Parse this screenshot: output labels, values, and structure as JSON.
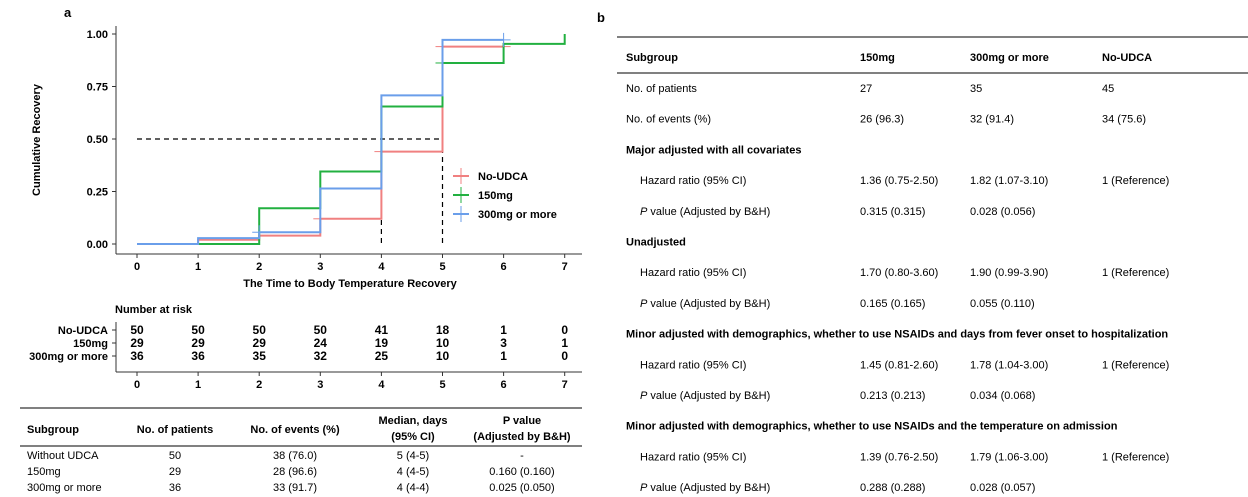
{
  "panel_a": {
    "label": "a",
    "legend": [
      {
        "name": "No-UDCA",
        "color": "#f08080"
      },
      {
        "name": "150mg",
        "color": "#22b040"
      },
      {
        "name": "300mg or more",
        "color": "#6a9eea"
      }
    ],
    "risk_table": {
      "title": "Number at risk",
      "rows": [
        {
          "label": "No-UDCA",
          "values": [
            "50",
            "50",
            "50",
            "50",
            "41",
            "18",
            "1",
            "0"
          ]
        },
        {
          "label": "150mg",
          "values": [
            "29",
            "29",
            "29",
            "24",
            "19",
            "10",
            "3",
            "1"
          ]
        },
        {
          "label": "300mg or more",
          "values": [
            "36",
            "36",
            "35",
            "32",
            "25",
            "10",
            "1",
            "0"
          ]
        }
      ],
      "x_ticks": [
        "0",
        "1",
        "2",
        "3",
        "4",
        "5",
        "6",
        "7"
      ]
    },
    "summary_table": {
      "headers": [
        "Subgroup",
        "No. of patients",
        "No. of events (%)",
        "Median, days",
        "(95% CI)",
        "P value",
        "(Adjusted by B&H)"
      ],
      "rows": [
        [
          "Without UDCA",
          "50",
          "38 (76.0)",
          "5 (4-5)",
          "-"
        ],
        [
          "150mg",
          "29",
          "28 (96.6)",
          "4 (4-5)",
          "0.160 (0.160)"
        ],
        [
          "300mg or more",
          "36",
          "33 (91.7)",
          "4 (4-4)",
          "0.025 (0.050)"
        ]
      ]
    }
  },
  "chart_data": {
    "type": "line",
    "step": true,
    "xlabel": "The Time to Body Temperature Recovery",
    "ylabel": "Cumulative Recovery",
    "xlim": [
      0,
      7
    ],
    "ylim": [
      0,
      1
    ],
    "x_ticks": [
      "0",
      "1",
      "2",
      "3",
      "4",
      "5",
      "6",
      "7"
    ],
    "y_ticks": [
      "0.00",
      "0.25",
      "0.50",
      "0.75",
      "1.00"
    ],
    "median_line": {
      "y": 0.5,
      "x_values": [
        4,
        5
      ]
    },
    "series": [
      {
        "name": "No-UDCA",
        "color": "#f08080",
        "x": [
          0,
          1,
          2,
          3,
          4,
          5,
          6
        ],
        "y": [
          0,
          0.02,
          0.04,
          0.12,
          0.44,
          0.94,
          0.94
        ],
        "censor": [
          [
            3,
            0.12
          ],
          [
            4,
            0.44
          ],
          [
            5,
            0.94
          ],
          [
            6,
            0.94
          ]
        ]
      },
      {
        "name": "150mg",
        "color": "#22b040",
        "x": [
          0,
          2,
          3,
          4,
          5,
          6,
          7
        ],
        "y": [
          0,
          0.17,
          0.345,
          0.655,
          0.862,
          0.953,
          1.0
        ],
        "censor": [
          [
            5,
            0.862
          ]
        ]
      },
      {
        "name": "300mg or more",
        "color": "#6a9eea",
        "x": [
          0,
          1,
          2,
          3,
          4,
          5,
          6
        ],
        "y": [
          0,
          0.028,
          0.056,
          0.264,
          0.708,
          0.972,
          0.972
        ],
        "censor": [
          [
            2,
            0.056
          ],
          [
            6,
            0.972
          ]
        ]
      }
    ]
  },
  "panel_b": {
    "label": "b",
    "headers": [
      "Subgroup",
      "150mg",
      "300mg or more",
      "No-UDCA"
    ],
    "rows": [
      {
        "kind": "data",
        "cells": [
          "No. of patients",
          "27",
          "35",
          "45"
        ]
      },
      {
        "kind": "data",
        "cells": [
          "No. of events (%)",
          "26 (96.3)",
          "32 (91.4)",
          "34 (75.6)"
        ]
      },
      {
        "kind": "section",
        "cells": [
          "Major adjusted with all covariates"
        ]
      },
      {
        "kind": "indent",
        "cells": [
          "Hazard ratio (95% CI)",
          "1.36 (0.75-2.50)",
          "1.82 (1.07-3.10)",
          "1 (Reference)"
        ]
      },
      {
        "kind": "pval",
        "cells": [
          "P",
          " value (Adjusted by B&H)",
          "0.315 (0.315)",
          "0.028 (0.056)",
          ""
        ]
      },
      {
        "kind": "section",
        "cells": [
          "Unadjusted"
        ]
      },
      {
        "kind": "indent",
        "cells": [
          "Hazard ratio (95% CI)",
          "1.70 (0.80-3.60)",
          "1.90 (0.99-3.90)",
          "1 (Reference)"
        ]
      },
      {
        "kind": "pval",
        "cells": [
          "P",
          " value (Adjusted by B&H)",
          "0.165 (0.165)",
          "0.055 (0.110)",
          ""
        ]
      },
      {
        "kind": "section",
        "cells": [
          "Minor adjusted with demographics, whether to use NSAIDs and days from fever onset to hospitalization"
        ]
      },
      {
        "kind": "indent",
        "cells": [
          "Hazard ratio (95% CI)",
          "1.45 (0.81-2.60)",
          "1.78 (1.04-3.00)",
          "1 (Reference)"
        ]
      },
      {
        "kind": "pval",
        "cells": [
          "P",
          " value (Adjusted by B&H)",
          "0.213 (0.213)",
          "0.034 (0.068)",
          ""
        ]
      },
      {
        "kind": "section",
        "cells": [
          "Minor adjusted with demographics, whether to use NSAIDs and the temperature on admission"
        ]
      },
      {
        "kind": "indent",
        "cells": [
          "Hazard ratio (95% CI)",
          "1.39 (0.76-2.50)",
          "1.79 (1.06-3.00)",
          "1 (Reference)"
        ]
      },
      {
        "kind": "pval",
        "cells": [
          "P",
          " value (Adjusted by B&H)",
          "0.288 (0.288)",
          "0.028 (0.057)",
          ""
        ]
      }
    ]
  }
}
